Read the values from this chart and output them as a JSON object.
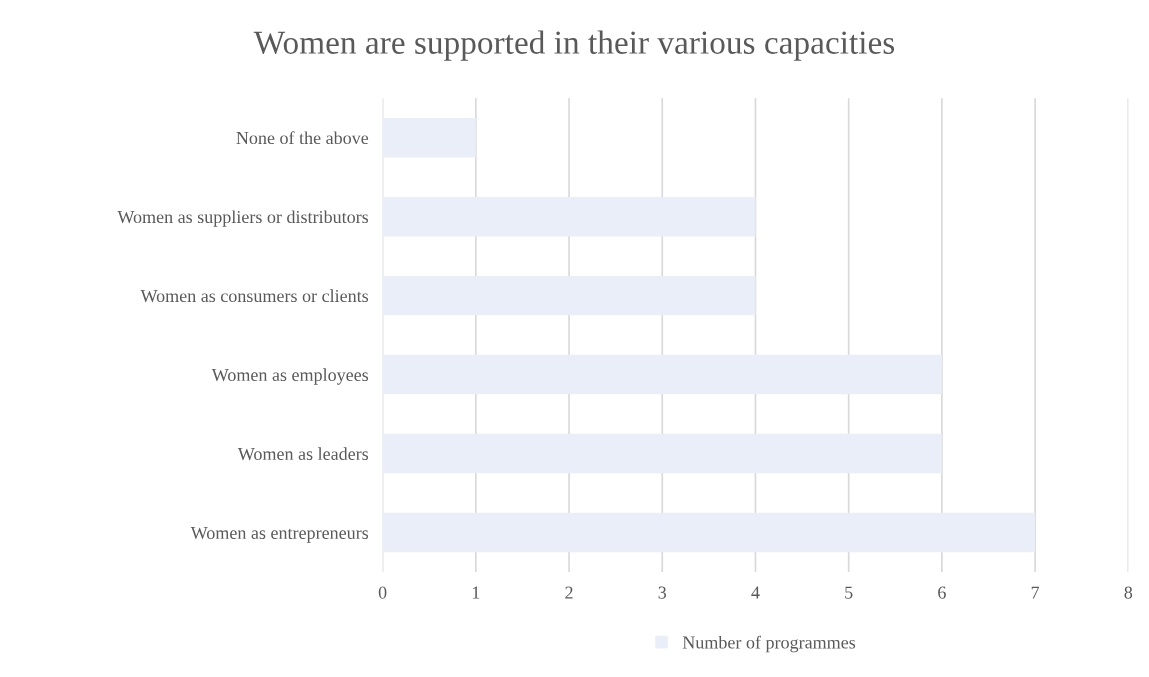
{
  "chart_data": {
    "type": "bar",
    "orientation": "horizontal",
    "title": "Women are supported in their various capacities",
    "categories": [
      "None of the above",
      "Women as suppliers or distributors",
      "Women as consumers or clients",
      "Women as employees",
      "Women as leaders",
      "Women as entrepreneurs"
    ],
    "series": [
      {
        "name": "Number of programmes",
        "color": "#e9eef8",
        "values": [
          1,
          4,
          4,
          6,
          6,
          7
        ]
      }
    ],
    "xlim": [
      0,
      8
    ],
    "xticks": [
      0,
      1,
      2,
      3,
      4,
      5,
      6,
      7,
      8
    ],
    "grid": "x",
    "legend": "bottom"
  }
}
